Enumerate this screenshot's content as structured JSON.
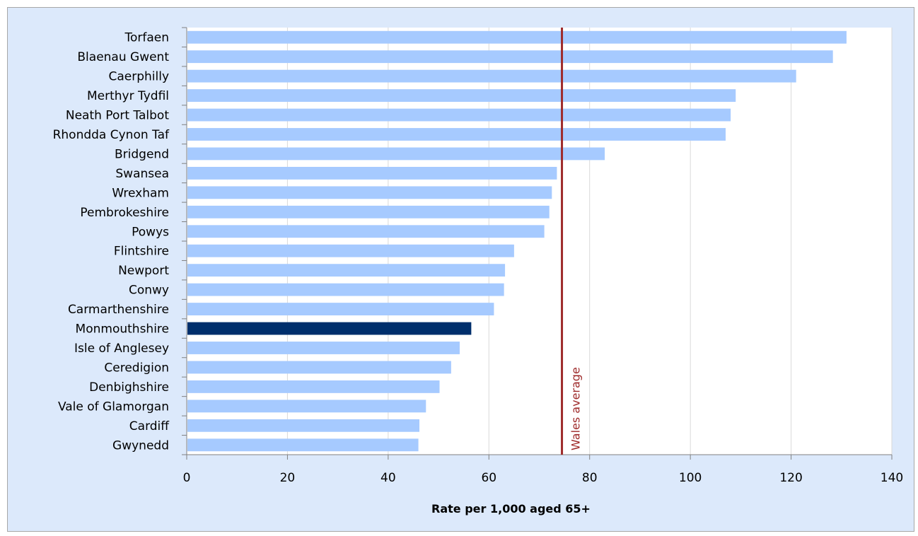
{
  "chart_data": {
    "type": "bar",
    "orientation": "horizontal",
    "categories": [
      "Torfaen",
      "Blaenau Gwent",
      "Caerphilly",
      "Merthyr Tydfil",
      "Neath Port Talbot",
      "Rhondda Cynon Taf",
      "Bridgend",
      "Swansea",
      "Wrexham",
      "Pembrokeshire",
      "Powys",
      "Flintshire",
      "Newport",
      "Conwy",
      "Carmarthenshire",
      "Monmouthshire",
      "Isle of Anglesey",
      "Ceredigion",
      "Denbighshire",
      "Vale of Glamorgan",
      "Cardiff",
      "Gwynedd"
    ],
    "values": [
      131,
      128.3,
      121,
      109,
      108,
      107,
      83,
      73.5,
      72.5,
      72,
      71,
      65,
      63.2,
      63,
      61,
      56.5,
      54.2,
      52.5,
      50.2,
      47.5,
      46.2,
      46
    ],
    "highlight": "Monmouthshire",
    "xlabel": "Rate per 1,000 aged 65+",
    "xlim": [
      0,
      140
    ],
    "xticks": [
      0,
      20,
      40,
      60,
      80,
      100,
      120,
      140
    ],
    "grid": "vertical",
    "reference_line": {
      "label": "Wales average",
      "value": 74.5
    },
    "colors": {
      "bar": "#a6caff",
      "highlight": "#002f6c",
      "reference": "#9e2a2a",
      "grid": "#d9d9d9",
      "axis": "#808080",
      "plot_bg": "#ffffff",
      "frame_bg": "#dce9fb"
    }
  }
}
